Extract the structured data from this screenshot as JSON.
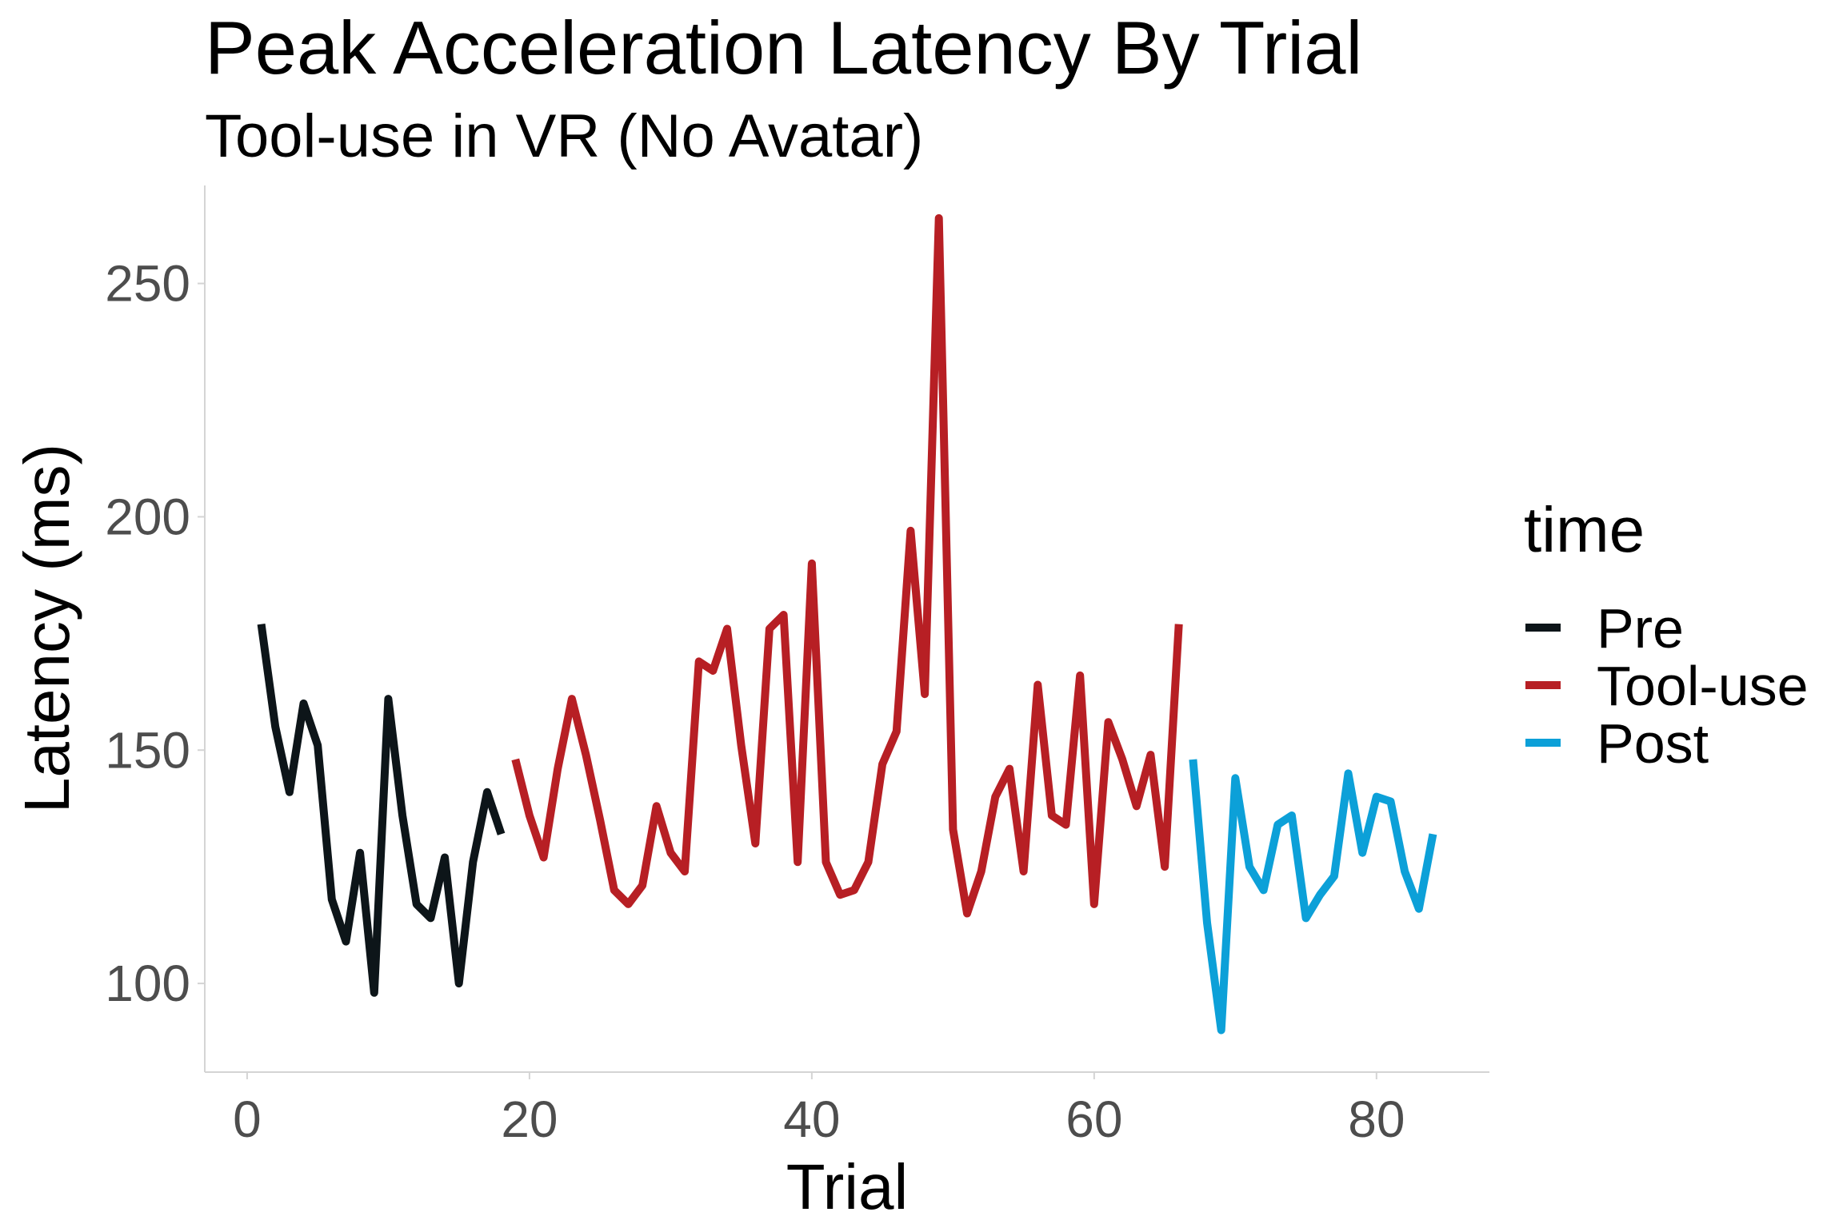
{
  "chart_data": {
    "type": "line",
    "title": "Peak Acceleration Latency By Trial",
    "subtitle": "Tool-use in VR (No Avatar)",
    "xlabel": "Trial",
    "ylabel": "Latency (ms)",
    "xlim": [
      -3,
      88
    ],
    "ylim": [
      81,
      271
    ],
    "x_ticks": [
      0,
      20,
      40,
      60,
      80
    ],
    "x_tick_labels": [
      "0",
      "20",
      "40",
      "60",
      "80"
    ],
    "y_ticks": [
      100,
      150,
      200,
      250
    ],
    "y_tick_labels": [
      "100",
      "150",
      "200",
      "250"
    ],
    "grid": false,
    "legend": {
      "title": "time",
      "position": "right",
      "entries": [
        "Pre",
        "Tool-use",
        "Post"
      ]
    },
    "series": [
      {
        "name": "Pre",
        "color": "#0d1519",
        "x": [
          1,
          2,
          3,
          4,
          5,
          6,
          7,
          8,
          9,
          10,
          11,
          12,
          13,
          14,
          15,
          16,
          17,
          18
        ],
        "y": [
          177,
          155,
          141,
          160,
          151,
          118,
          109,
          128,
          98,
          161,
          136,
          117,
          114,
          127,
          100,
          126,
          141,
          132
        ]
      },
      {
        "name": "Tool-use",
        "color": "#b71f24",
        "x": [
          19,
          20,
          21,
          22,
          23,
          24,
          25,
          26,
          27,
          28,
          29,
          30,
          31,
          32,
          33,
          34,
          35,
          36,
          37,
          38,
          39,
          40,
          41,
          42,
          43,
          44,
          45,
          46,
          47,
          48,
          49,
          50,
          51,
          52,
          53,
          54,
          55,
          56,
          57,
          58,
          59,
          60,
          61,
          62,
          63,
          64,
          65,
          66
        ],
        "y": [
          148,
          136,
          127,
          146,
          161,
          149,
          135,
          120,
          117,
          121,
          138,
          128,
          124,
          169,
          167,
          176,
          151,
          130,
          176,
          179,
          126,
          190,
          126,
          119,
          120,
          126,
          147,
          154,
          197,
          162,
          264,
          133,
          115,
          124,
          140,
          146,
          124,
          164,
          136,
          134,
          166,
          117,
          156,
          148,
          138,
          149,
          125,
          177
        ]
      },
      {
        "name": "Post",
        "color": "#0ca0d8",
        "x": [
          67,
          68,
          69,
          70,
          71,
          72,
          73,
          74,
          75,
          76,
          77,
          78,
          79,
          80,
          81,
          82,
          83,
          84
        ],
        "y": [
          148,
          113,
          90,
          144,
          125,
          120,
          134,
          136,
          114,
          119,
          123,
          145,
          128,
          140,
          139,
          124,
          116,
          132
        ]
      }
    ]
  }
}
